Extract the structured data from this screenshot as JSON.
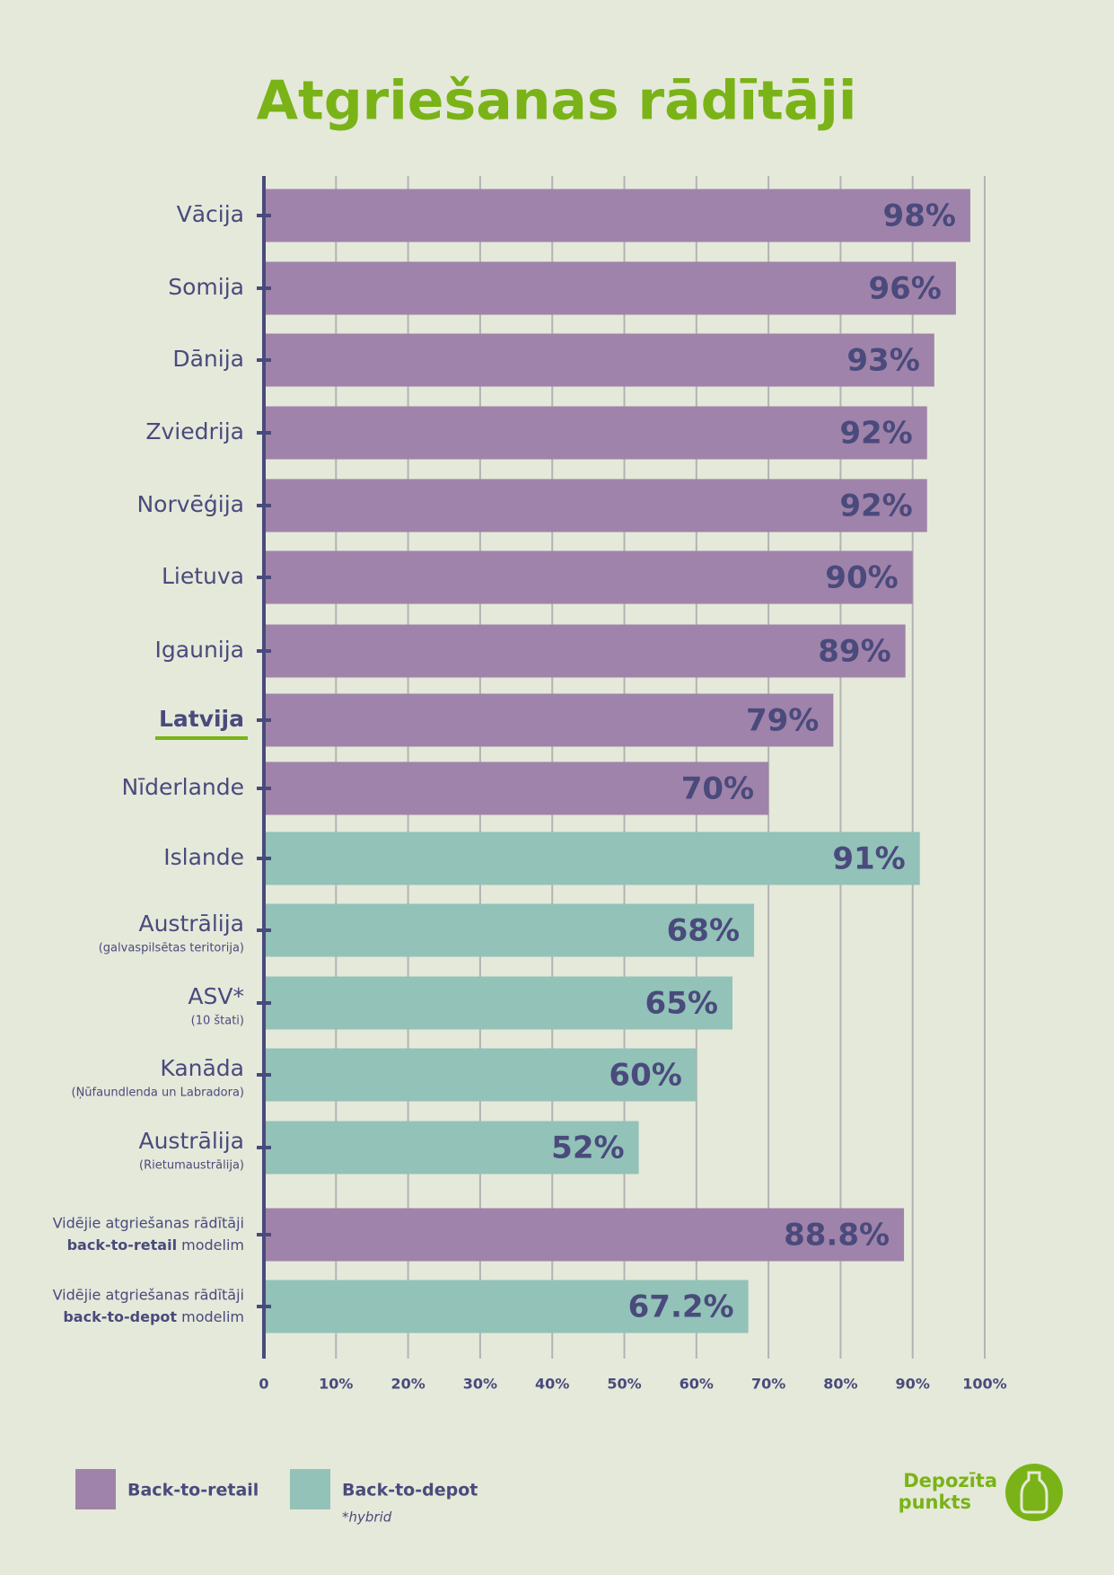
{
  "chart_data": {
    "type": "hbar",
    "title": "Atgriešanas rādītāji",
    "categories": [
      "Vācija",
      "Somija",
      "Dānija",
      "Zviedrija",
      "Norvēģija",
      "Lietuva",
      "Igaunija",
      "Latvija",
      "Nīderlande",
      "Islande",
      "Austrālija",
      "ASV*",
      "Kanāda",
      "Austrālija",
      "Vidējie atgriešanas rādītāji",
      "Vidējie atgriešanas rādītāji"
    ],
    "category_notes": [
      null,
      null,
      null,
      null,
      null,
      null,
      null,
      null,
      null,
      null,
      "(galvaspilsētas teritorija)",
      "(10 štati)",
      "(Ņūfaundlenda un Labradora)",
      "(Rietumaustrālija)",
      [
        "back-to-retail",
        "modelim"
      ],
      [
        "back-to-depot",
        "modelim"
      ]
    ],
    "highlight": "Latvija",
    "series": [
      {
        "name": "Back-to-retail",
        "color": "#a083aa",
        "values": [
          98,
          96,
          93,
          92,
          92,
          90,
          89,
          79,
          70,
          null,
          null,
          null,
          null,
          null,
          88.8,
          null
        ],
        "value_labels": [
          "98%",
          "96%",
          "93%",
          "92%",
          "92%",
          "90%",
          "89%",
          "79%",
          "70%",
          null,
          null,
          null,
          null,
          null,
          "88.8%",
          null
        ]
      },
      {
        "name": "Back-to-depot",
        "color": "#92c2b8",
        "note": "*hybrid",
        "values": [
          null,
          null,
          null,
          null,
          null,
          null,
          null,
          null,
          null,
          91,
          68,
          65,
          60,
          52,
          null,
          67.2
        ],
        "value_labels": [
          null,
          null,
          null,
          null,
          null,
          null,
          null,
          null,
          null,
          "91%",
          "68%",
          "65%",
          "60%",
          "52%",
          null,
          "67.2%"
        ]
      }
    ],
    "xlim": [
      0,
      100
    ],
    "xticks": [
      0,
      {
        "value": 10,
        "label": "10%"
      },
      {
        "value": 20,
        "label": "20%"
      },
      {
        "value": 30,
        "label": "30%"
      },
      {
        "value": 40,
        "label": "40%"
      },
      {
        "value": 50,
        "label": "50%"
      },
      {
        "value": 60,
        "label": "60%"
      },
      {
        "value": 70,
        "label": "70%"
      },
      {
        "value": 80,
        "label": "80%"
      },
      {
        "value": 90,
        "label": "90%"
      },
      {
        "value": 100,
        "label": "100%"
      }
    ],
    "grid": true,
    "logo": [
      "Depozīta",
      "punkts"
    ]
  }
}
